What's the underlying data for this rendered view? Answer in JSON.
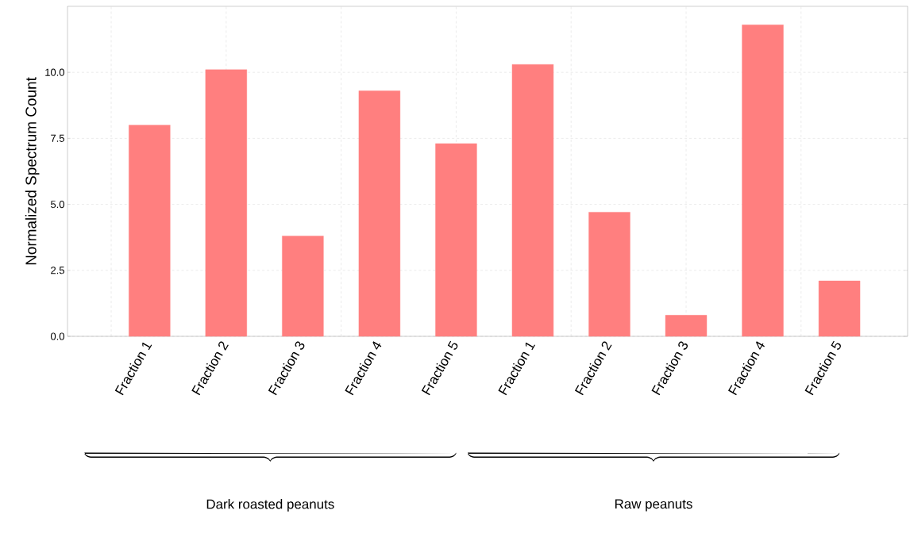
{
  "chart_data": {
    "type": "bar",
    "ylabel": "Normalized Spectrum Count",
    "categories": [
      "Fraction 1",
      "Fraction 2",
      "Fraction 3",
      "Fraction 4",
      "Fraction 5",
      "Fraction 1",
      "Fraction 2",
      "Fraction 3",
      "Fraction 4",
      "Fraction 5"
    ],
    "values": [
      8.0,
      10.1,
      3.8,
      9.3,
      7.3,
      10.3,
      4.7,
      0.8,
      11.8,
      2.1
    ],
    "color": "#ff7f7f",
    "ylim": [
      0,
      12.5
    ],
    "yticks": [
      {
        "value": 0,
        "label": "0.0"
      },
      {
        "value": 2.5,
        "label": "2.5"
      },
      {
        "value": 5,
        "label": "5.0"
      },
      {
        "value": 7.5,
        "label": "7.5"
      },
      {
        "value": 10,
        "label": "10.0"
      }
    ],
    "grid": true,
    "annotations": [
      "Dark roasted peanuts",
      "Raw peanuts"
    ]
  }
}
